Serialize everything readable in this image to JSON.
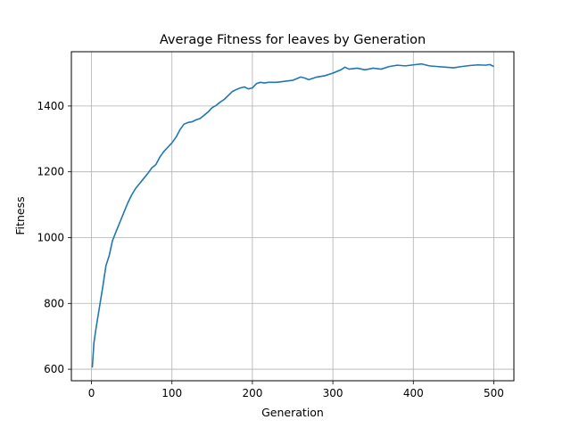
{
  "chart_data": {
    "type": "line",
    "title": "Average Fitness for leaves by Generation",
    "xlabel": "Generation",
    "ylabel": "Fitness",
    "xlim": [
      -25,
      525
    ],
    "ylim": [
      565,
      1565
    ],
    "x_ticks": [
      0,
      100,
      200,
      300,
      400,
      500
    ],
    "y_ticks": [
      600,
      800,
      1000,
      1200,
      1400
    ],
    "grid": true,
    "series": [
      {
        "color": "#1f77b4",
        "x": [
          1,
          3,
          6,
          10,
          14,
          18,
          22,
          26,
          30,
          35,
          40,
          45,
          50,
          55,
          60,
          65,
          70,
          75,
          80,
          85,
          90,
          95,
          100,
          105,
          110,
          115,
          120,
          125,
          130,
          135,
          140,
          145,
          150,
          155,
          160,
          165,
          170,
          175,
          180,
          185,
          190,
          195,
          200,
          205,
          210,
          215,
          220,
          230,
          240,
          250,
          260,
          265,
          270,
          280,
          290,
          300,
          310,
          315,
          320,
          330,
          340,
          350,
          360,
          370,
          380,
          390,
          400,
          410,
          420,
          430,
          440,
          450,
          460,
          470,
          480,
          490,
          495,
          500
        ],
        "y": [
          605,
          680,
          730,
          790,
          850,
          915,
          945,
          990,
          1015,
          1045,
          1075,
          1105,
          1130,
          1150,
          1165,
          1180,
          1195,
          1212,
          1222,
          1245,
          1262,
          1275,
          1288,
          1305,
          1328,
          1345,
          1350,
          1352,
          1358,
          1362,
          1372,
          1382,
          1395,
          1402,
          1412,
          1420,
          1432,
          1444,
          1450,
          1455,
          1458,
          1452,
          1455,
          1468,
          1472,
          1470,
          1472,
          1472,
          1475,
          1478,
          1488,
          1485,
          1480,
          1488,
          1492,
          1500,
          1510,
          1518,
          1512,
          1515,
          1510,
          1515,
          1512,
          1520,
          1524,
          1522,
          1525,
          1528,
          1522,
          1520,
          1518,
          1516,
          1520,
          1523,
          1525,
          1524,
          1526,
          1520
        ]
      }
    ]
  }
}
